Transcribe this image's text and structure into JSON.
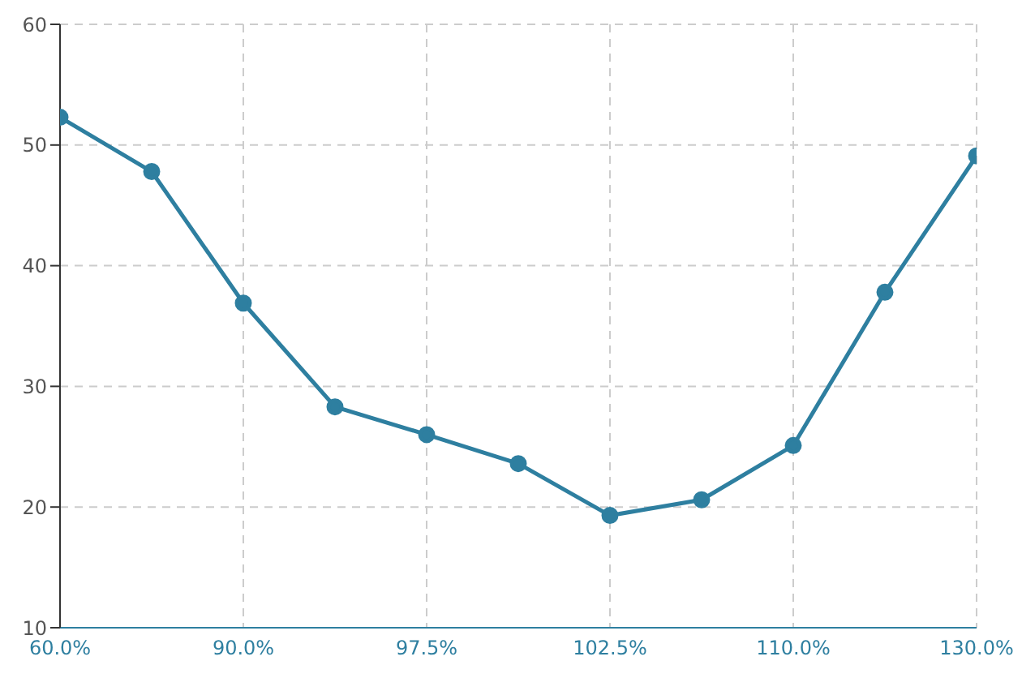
{
  "chart_data": {
    "type": "line",
    "categories": [
      "60.0%",
      null,
      "90.0%",
      null,
      "97.5%",
      null,
      "102.5%",
      null,
      "110.0%",
      null,
      "130.0%"
    ],
    "series": [
      {
        "color": "#2e7fa0",
        "values": [
          52.3,
          47.8,
          36.9,
          28.3,
          26.0,
          23.6,
          19.3,
          20.6,
          25.1,
          37.8,
          49.1
        ]
      }
    ],
    "ylim": [
      10,
      60
    ],
    "yticks": [
      10,
      20,
      30,
      40,
      50,
      60
    ],
    "grid": true,
    "marker": "circle",
    "line_style": "solid"
  }
}
